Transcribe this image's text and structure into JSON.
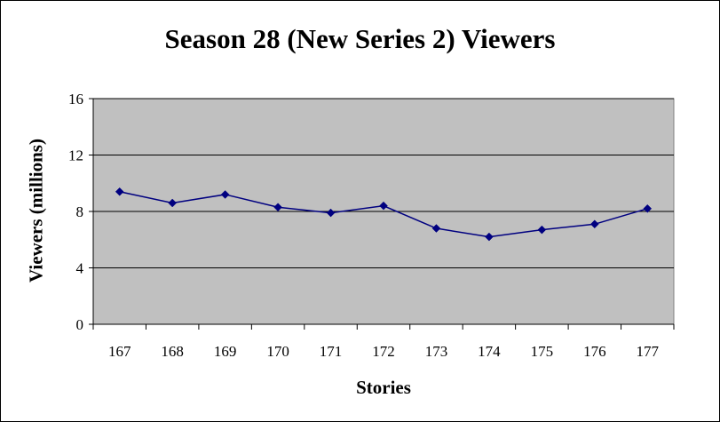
{
  "chart_data": {
    "type": "line",
    "title": "Season 28 (New Series 2) Viewers",
    "xlabel": "Stories",
    "ylabel": "Viewers (millions)",
    "categories": [
      "167",
      "168",
      "169",
      "170",
      "171",
      "172",
      "173",
      "174",
      "175",
      "176",
      "177"
    ],
    "series": [
      {
        "values": [
          9.4,
          8.6,
          9.2,
          8.3,
          7.9,
          8.4,
          6.8,
          6.2,
          6.7,
          7.1,
          8.2
        ]
      }
    ],
    "ylim": [
      0,
      16
    ],
    "yticks": [
      "0",
      "4",
      "8",
      "12",
      "16"
    ],
    "grid": true,
    "legend": "none",
    "colors": {
      "plot_background": "#c0c0c0",
      "line": "#000080",
      "marker": "#000080",
      "gridline": "#000000"
    }
  }
}
